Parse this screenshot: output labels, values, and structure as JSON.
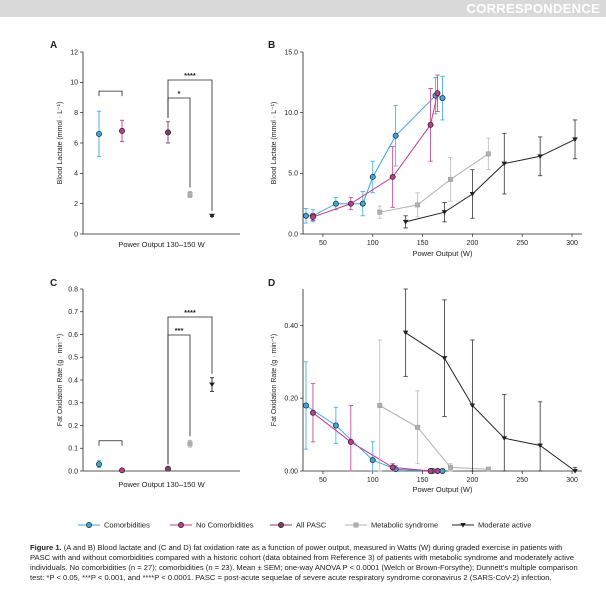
{
  "banner": {
    "text": "CORRESPONDENCE"
  },
  "colors": {
    "comorbidities": "#3aa8e0",
    "no_comorbidities": "#c03a8f",
    "all_pasc": "#8a3c60",
    "metabolic": "#b0b0b0",
    "moderate": "#222222"
  },
  "legend": [
    {
      "key": "comorbidities",
      "label": "Comorbidities",
      "marker": "circle"
    },
    {
      "key": "no_comorbidities",
      "label": "No Comorbidities",
      "marker": "circle"
    },
    {
      "key": "all_pasc",
      "label": "All PASC",
      "marker": "circle"
    },
    {
      "key": "metabolic",
      "label": "Metabolic syndrome",
      "marker": "square"
    },
    {
      "key": "moderate",
      "label": "Moderate active",
      "marker": "triangle"
    }
  ],
  "chart_data": [
    {
      "panel": "A",
      "type": "scatter",
      "xlabel": "Power Output 130–150 W",
      "ylabel": "Blood Lactate (mmol · L⁻¹)",
      "ylim": [
        0,
        12
      ],
      "yticks": [
        0,
        2,
        4,
        6,
        8,
        10,
        12
      ],
      "points": [
        {
          "series": "comorbidities",
          "y": 6.6,
          "err": 1.5
        },
        {
          "series": "no_comorbidities",
          "y": 6.8,
          "err": 0.7
        },
        {
          "series": "all_pasc",
          "y": 6.7,
          "err": 0.7
        },
        {
          "series": "metabolic",
          "y": 2.6,
          "err": 0.2
        },
        {
          "series": "moderate",
          "y": 1.2,
          "err": 0.05
        }
      ],
      "brackets": [
        {
          "from": 0,
          "to": 1,
          "label": ""
        },
        {
          "from": 2,
          "to": 3,
          "label": "*"
        },
        {
          "from": 2,
          "to": 4,
          "label": "****"
        }
      ]
    },
    {
      "panel": "B",
      "type": "line",
      "xlabel": "Power Output (W)",
      "ylabel": "Blood Lactate (mmol · L⁻¹)",
      "xlim": [
        30,
        310
      ],
      "xticks": [
        50,
        100,
        150,
        200,
        250,
        300
      ],
      "ylim": [
        0,
        15
      ],
      "yticks": [
        0.0,
        5.0,
        10.0,
        15.0
      ],
      "series": [
        {
          "key": "comorbidities",
          "points": [
            [
              33,
              1.5,
              0.6
            ],
            [
              40,
              1.5,
              0.5
            ],
            [
              63,
              2.5,
              0.5
            ],
            [
              90,
              2.5,
              1.0
            ],
            [
              100,
              4.7,
              1.3
            ],
            [
              123,
              8.1,
              2.5
            ],
            [
              163,
              11.4,
              1.5
            ],
            [
              170,
              11.2,
              1.8
            ]
          ]
        },
        {
          "key": "no_comorbidities",
          "points": [
            [
              40,
              1.4,
              0.3
            ],
            [
              78,
              2.5,
              0.5
            ],
            [
              120,
              4.7,
              2.5
            ],
            [
              158,
              9.0,
              3.0
            ],
            [
              165,
              11.6,
              1.5
            ]
          ]
        },
        {
          "key": "metabolic",
          "points": [
            [
              107,
              1.8,
              0.5
            ],
            [
              145,
              2.4,
              1.0
            ],
            [
              178,
              4.5,
              1.8
            ],
            [
              216,
              6.6,
              1.3
            ]
          ]
        },
        {
          "key": "moderate",
          "points": [
            [
              133,
              1.0,
              0.5
            ],
            [
              172,
              1.8,
              0.8
            ],
            [
              200,
              3.3,
              2.0
            ],
            [
              232,
              5.8,
              2.5
            ],
            [
              268,
              6.4,
              1.6
            ],
            [
              303,
              7.8,
              1.6
            ]
          ]
        }
      ]
    },
    {
      "panel": "C",
      "type": "scatter",
      "xlabel": "Power Output 130–150 W",
      "ylabel": "Fat Oxidation Rate (g · min⁻¹)",
      "ylim": [
        0,
        0.8
      ],
      "yticks": [
        0.0,
        0.1,
        0.2,
        0.3,
        0.4,
        0.5,
        0.6,
        0.7,
        0.8
      ],
      "points": [
        {
          "series": "comorbidities",
          "y": 0.03,
          "err": 0.015
        },
        {
          "series": "no_comorbidities",
          "y": 0.003,
          "err": 0.002
        },
        {
          "series": "all_pasc",
          "y": 0.01,
          "err": 0.002
        },
        {
          "series": "metabolic",
          "y": 0.12,
          "err": 0.015
        },
        {
          "series": "moderate",
          "y": 0.38,
          "err": 0.03
        }
      ],
      "brackets": [
        {
          "from": 0,
          "to": 1,
          "label": ""
        },
        {
          "from": 2,
          "to": 3,
          "label": "***"
        },
        {
          "from": 2,
          "to": 4,
          "label": "****"
        }
      ]
    },
    {
      "panel": "D",
      "type": "line",
      "xlabel": "Power Output (W)",
      "ylabel": "Fat Oxidation Rate (g · min⁻¹)",
      "xlim": [
        30,
        310
      ],
      "xticks": [
        50,
        100,
        150,
        200,
        250,
        300
      ],
      "ylim": [
        0,
        0.5
      ],
      "yticks": [
        0.0,
        0.2,
        0.4
      ],
      "series": [
        {
          "key": "comorbidities",
          "points": [
            [
              33,
              0.18,
              0.12
            ],
            [
              63,
              0.125,
              0.05
            ],
            [
              100,
              0.03,
              0.05
            ],
            [
              123,
              0.005,
              0.01
            ],
            [
              160,
              0.0,
              0.005
            ],
            [
              170,
              0.0,
              0.005
            ]
          ]
        },
        {
          "key": "no_comorbidities",
          "points": [
            [
              40,
              0.16,
              0.08
            ],
            [
              78,
              0.08,
              0.1
            ],
            [
              120,
              0.01,
              0.01
            ],
            [
              158,
              0.0,
              0.005
            ],
            [
              165,
              0.0,
              0.005
            ]
          ]
        },
        {
          "key": "metabolic",
          "points": [
            [
              107,
              0.18,
              0.18
            ],
            [
              145,
              0.12,
              0.1
            ],
            [
              178,
              0.01,
              0.01
            ],
            [
              216,
              0.005,
              0.005
            ]
          ]
        },
        {
          "key": "moderate",
          "points": [
            [
              133,
              0.38,
              0.12
            ],
            [
              172,
              0.31,
              0.16
            ],
            [
              200,
              0.18,
              0.18
            ],
            [
              232,
              0.09,
              0.12
            ],
            [
              268,
              0.07,
              0.12
            ],
            [
              303,
              0.0,
              0.01
            ]
          ]
        }
      ]
    }
  ],
  "caption": {
    "heading": "Figure 1.",
    "body": " (A and B) Blood lactate and (C and D) fat oxidation rate as a function of power output, measured in Watts (W) during graded exercise in patients with PASC with and without comorbidities compared with a historic cohort (data obtained from Reference 3) of patients with metabolic syndrome and moderately active individuals. No comorbidities (n = 27); comorbidities (n = 23). Mean ± SEM; one-way ANOVA P < 0.0001 (Welch or Brown-Forsythe); Dunnett's multiple comparison test: *P < 0.05, ***P < 0.001, and ****P < 0.0001. PASC = post-acute sequelae of severe acute respiratory syndrome coronavirus 2 (SARS-CoV-2) infection."
  }
}
